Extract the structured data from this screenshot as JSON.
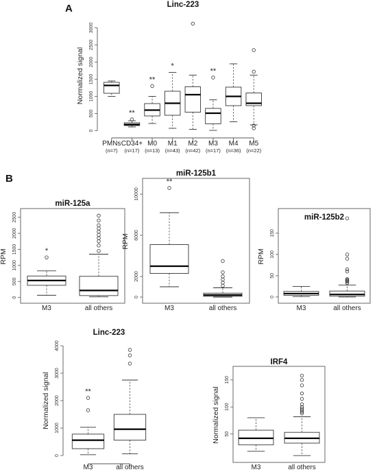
{
  "panel_labels": {
    "a": "A",
    "b": "B"
  },
  "chart_data": [
    {
      "id": "linc223-all",
      "type": "box",
      "title": "Linc-223",
      "ylabel": "Normalized signal",
      "ylim": [
        -50,
        3250
      ],
      "yticks": [
        0,
        500,
        1000,
        1500,
        2000,
        2500,
        3000
      ],
      "categories": [
        "PMNs",
        "CD34+",
        "M0",
        "M1",
        "M2",
        "M3",
        "M4",
        "M5"
      ],
      "subcategories": [
        "(n=7)",
        "(n=17)",
        "(n=13)",
        "(n=43)",
        "(n=42)",
        "(n=17)",
        "(n=36)",
        "(n=22)"
      ],
      "significance": [
        "",
        "**",
        "**",
        "*",
        "",
        "**",
        "",
        ""
      ],
      "boxes": [
        {
          "min": 1000,
          "q1": 1090,
          "median": 1320,
          "q3": 1410,
          "max": 1450,
          "outliers": []
        },
        {
          "min": 110,
          "q1": 150,
          "median": 180,
          "q3": 230,
          "max": 290,
          "outliers": [
            330
          ]
        },
        {
          "min": 210,
          "q1": 430,
          "median": 600,
          "q3": 790,
          "max": 1000,
          "outliers": [
            1300
          ]
        },
        {
          "min": 70,
          "q1": 450,
          "median": 800,
          "q3": 1150,
          "max": 1700,
          "outliers": []
        },
        {
          "min": 40,
          "q1": 540,
          "median": 1050,
          "q3": 1280,
          "max": 1620,
          "outliers": [
            3120
          ]
        },
        {
          "min": 10,
          "q1": 200,
          "median": 510,
          "q3": 650,
          "max": 900,
          "outliers": [
            1550
          ]
        },
        {
          "min": 260,
          "q1": 730,
          "median": 1000,
          "q3": 1270,
          "max": 1950,
          "outliers": []
        },
        {
          "min": 170,
          "q1": 730,
          "median": 800,
          "q3": 1100,
          "max": 1620,
          "outliers": [
            1720,
            2350,
            150,
            70
          ]
        }
      ]
    },
    {
      "id": "mir125a",
      "type": "box",
      "title": "miR-125a",
      "ylabel": "RPM",
      "ylim": [
        -50,
        2600
      ],
      "yticks": [
        0,
        500,
        1000,
        1500,
        2000,
        2500
      ],
      "categories": [
        "M3",
        "all others"
      ],
      "significance": [
        "*",
        ""
      ],
      "boxes": [
        {
          "min": 70,
          "q1": 380,
          "median": 530,
          "q3": 670,
          "max": 830,
          "outliers": [
            1250
          ]
        },
        {
          "min": 20,
          "q1": 60,
          "median": 220,
          "q3": 660,
          "max": 1350,
          "outliers": [
            1450,
            1620,
            1750,
            1850,
            1950,
            2050,
            2150,
            2250,
            2400,
            2550
          ]
        }
      ]
    },
    {
      "id": "mir125b1",
      "type": "box",
      "title": "miR-125b1",
      "ylabel": "RPM",
      "ylim": [
        -200,
        11000
      ],
      "yticks": [
        0,
        2000,
        6000,
        10000
      ],
      "categories": [
        "M3",
        "all others"
      ],
      "significance": [
        "**",
        ""
      ],
      "boxes": [
        {
          "min": 1000,
          "q1": 2300,
          "median": 3000,
          "q3": 5100,
          "max": 8200,
          "outliers": [
            10600
          ]
        },
        {
          "min": 0,
          "q1": 70,
          "median": 200,
          "q3": 380,
          "max": 900,
          "outliers": [
            1100,
            1400,
            1700,
            2000,
            2400,
            3500
          ]
        }
      ]
    },
    {
      "id": "mir125b2",
      "type": "box",
      "title": "miR-125b2",
      "ylabel": "RPM",
      "ylim": [
        -5,
        195
      ],
      "yticks": [
        0,
        50,
        100,
        150
      ],
      "categories": [
        "M3",
        "all others"
      ],
      "significance": [
        "",
        ""
      ],
      "boxes": [
        {
          "min": 1,
          "q1": 4,
          "median": 8,
          "q3": 13,
          "max": 25,
          "outliers": []
        },
        {
          "min": 0,
          "q1": 2,
          "median": 6,
          "q3": 14,
          "max": 28,
          "outliers": [
            33,
            36,
            38,
            40,
            42,
            60,
            65,
            90,
            100,
            185
          ]
        }
      ]
    },
    {
      "id": "linc223-m3",
      "type": "box",
      "title": "Linc-223",
      "ylabel": "Normalized signal",
      "ylim": [
        -100,
        4100
      ],
      "yticks": [
        0,
        1000,
        2000,
        3000,
        4000
      ],
      "categories": [
        "M3",
        "all others"
      ],
      "significance": [
        "**",
        ""
      ],
      "boxes": [
        {
          "min": 30,
          "q1": 250,
          "median": 560,
          "q3": 780,
          "max": 1030,
          "outliers": [
            1650,
            2100
          ]
        },
        {
          "min": 60,
          "q1": 560,
          "median": 960,
          "q3": 1500,
          "max": 2750,
          "outliers": [
            3350,
            3650,
            3850
          ]
        }
      ]
    },
    {
      "id": "irf4",
      "type": "box",
      "title": "IRF4",
      "ylabel": "Normalized signal",
      "ylim": [
        5,
        165
      ],
      "yticks": [
        50,
        100,
        150
      ],
      "categories": [
        "M3",
        "all others"
      ],
      "significance": [
        "",
        ""
      ],
      "boxes": [
        {
          "min": 18,
          "q1": 30,
          "median": 42,
          "q3": 57,
          "max": 80,
          "outliers": []
        },
        {
          "min": 10,
          "q1": 33,
          "median": 42,
          "q3": 53,
          "max": 82,
          "outliers": [
            88,
            91,
            94,
            97,
            100,
            105,
            115,
            125,
            140,
            150,
            158
          ]
        }
      ]
    }
  ]
}
